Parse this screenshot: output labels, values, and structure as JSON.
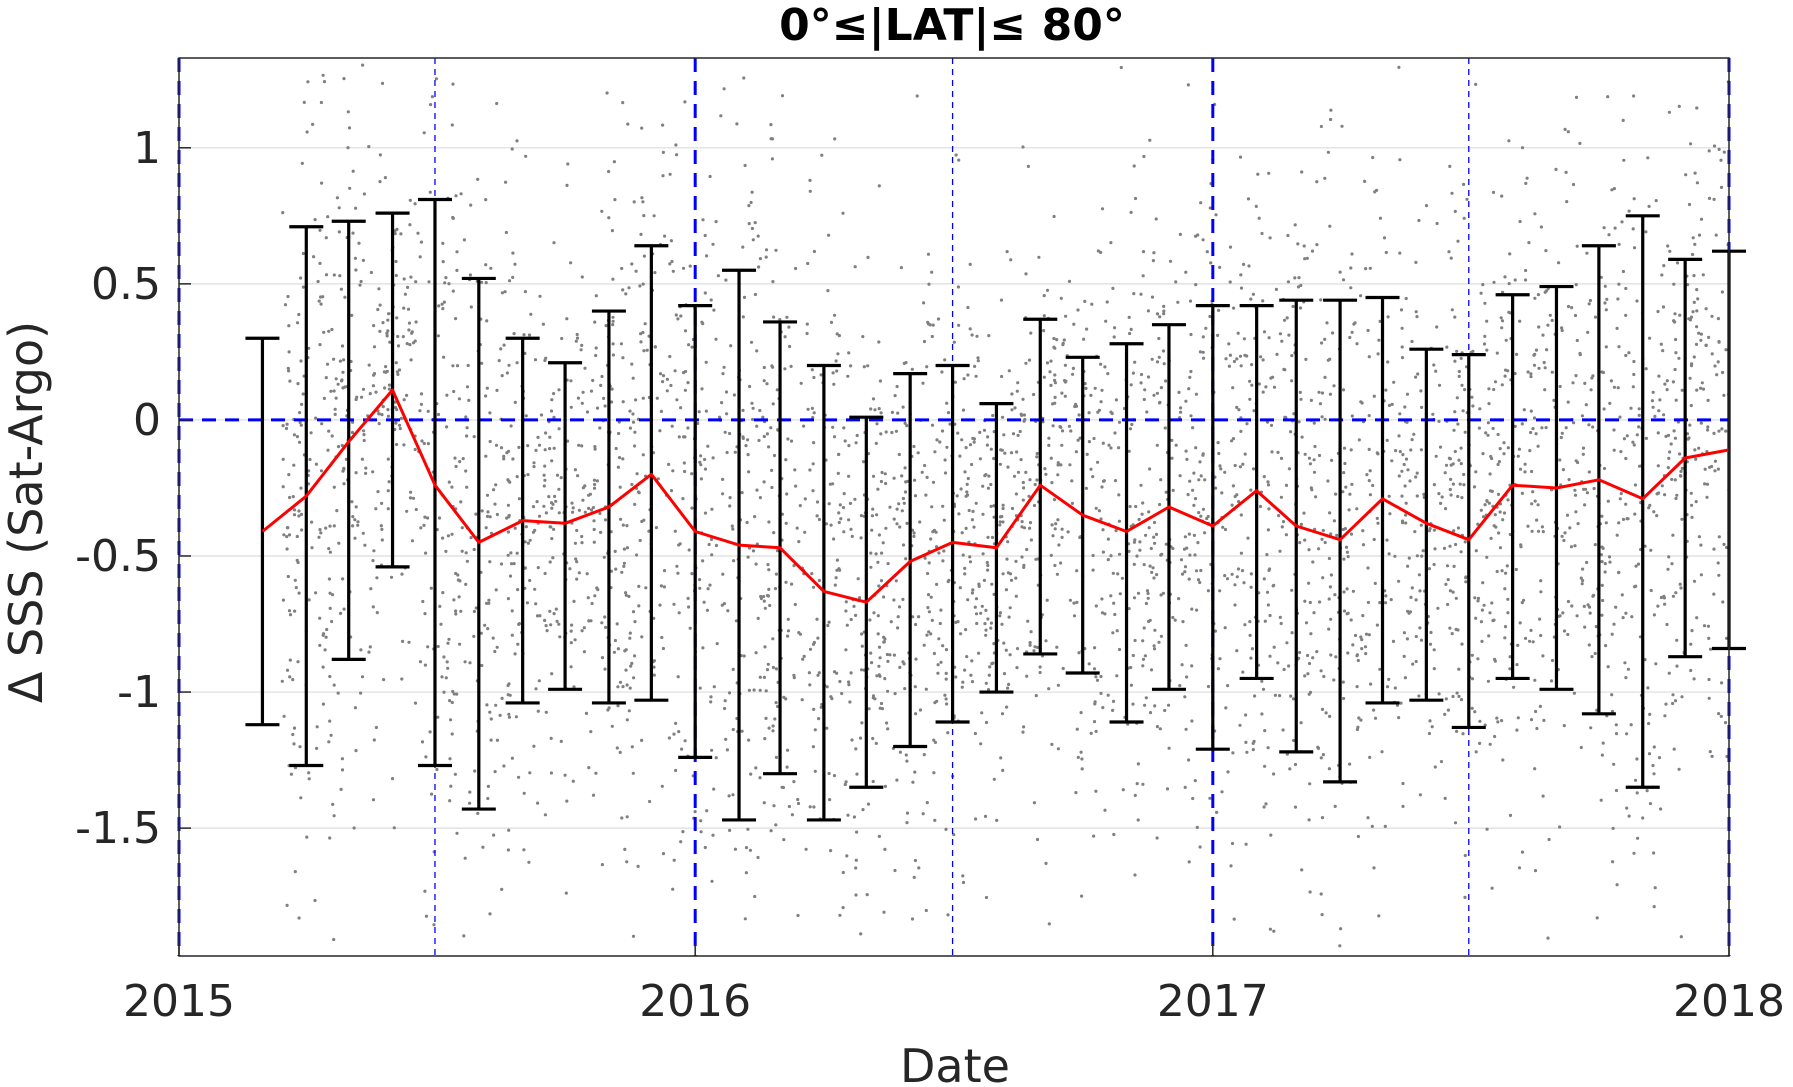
{
  "chart_data": {
    "type": "scatter",
    "title": "0°≤|LAT|≤ 80°",
    "xlabel": "Date",
    "ylabel": "Δ SSS (Sat-Argo)",
    "xlim": [
      "2015-01-01",
      "2018-01-01"
    ],
    "ylim": [
      -1.97,
      1.33
    ],
    "x_ticks": [
      "2015",
      "2016",
      "2017",
      "2018"
    ],
    "y_ticks": [
      1,
      0.5,
      0,
      -0.5,
      -1,
      -1.5
    ],
    "y_tick_labels": [
      "1",
      "0.5",
      "0",
      "-0.5",
      "-1",
      "-1.5"
    ],
    "grid": true,
    "colors": {
      "scatter": "#808080",
      "mean_line": "#ff0000",
      "errorbars": "#000000",
      "reference": "#0000ff"
    },
    "reference_lines": {
      "zero_line_y": 0,
      "year_boundaries": [
        "2015-01-01",
        "2016-01-01",
        "2017-01-01",
        "2018-01-01"
      ],
      "mid_year_lines": [
        "2015-07-01",
        "2016-07-01",
        "2017-07-01"
      ]
    },
    "series": [
      {
        "kind": "mean_with_errorbars",
        "x": [
          "2015-03-01",
          "2015-04-01",
          "2015-05-01",
          "2015-06-01",
          "2015-07-01",
          "2015-08-01",
          "2015-09-01",
          "2015-10-01",
          "2015-11-01",
          "2015-12-01",
          "2016-01-01",
          "2016-02-01",
          "2016-03-01",
          "2016-04-01",
          "2016-05-01",
          "2016-06-01",
          "2016-07-01",
          "2016-08-01",
          "2016-09-01",
          "2016-10-01",
          "2016-11-01",
          "2016-12-01",
          "2017-01-01",
          "2017-02-01",
          "2017-03-01",
          "2017-04-01",
          "2017-05-01",
          "2017-06-01",
          "2017-07-01",
          "2017-08-01",
          "2017-09-01",
          "2017-10-01",
          "2017-11-01",
          "2017-12-01",
          "2018-01-01"
        ],
        "mean": [
          -0.41,
          -0.28,
          -0.08,
          0.11,
          -0.24,
          -0.45,
          -0.37,
          -0.38,
          -0.32,
          -0.2,
          -0.41,
          -0.46,
          -0.47,
          -0.63,
          -0.67,
          -0.52,
          -0.45,
          -0.47,
          -0.24,
          -0.35,
          -0.41,
          -0.32,
          -0.39,
          -0.26,
          -0.39,
          -0.44,
          -0.29,
          -0.38,
          -0.44,
          -0.24,
          -0.25,
          -0.22,
          -0.29,
          -0.14,
          -0.11
        ],
        "upper": [
          0.3,
          0.71,
          0.73,
          0.76,
          0.81,
          0.52,
          0.3,
          0.21,
          0.4,
          0.64,
          0.42,
          0.55,
          0.36,
          0.2,
          0.01,
          0.17,
          0.2,
          0.06,
          0.37,
          0.23,
          0.28,
          0.35,
          0.42,
          0.42,
          0.44,
          0.44,
          0.45,
          0.26,
          0.24,
          0.46,
          0.49,
          0.64,
          0.75,
          0.59,
          0.62
        ],
        "lower": [
          -1.12,
          -1.27,
          -0.88,
          -0.54,
          -1.27,
          -1.43,
          -1.04,
          -0.99,
          -1.04,
          -1.03,
          -1.24,
          -1.47,
          -1.3,
          -1.47,
          -1.35,
          -1.2,
          -1.11,
          -1.0,
          -0.86,
          -0.93,
          -1.11,
          -0.99,
          -1.21,
          -0.95,
          -1.22,
          -1.33,
          -1.04,
          -1.03,
          -1.13,
          -0.95,
          -0.99,
          -1.08,
          -1.35,
          -0.87,
          -0.84
        ]
      }
    ]
  }
}
